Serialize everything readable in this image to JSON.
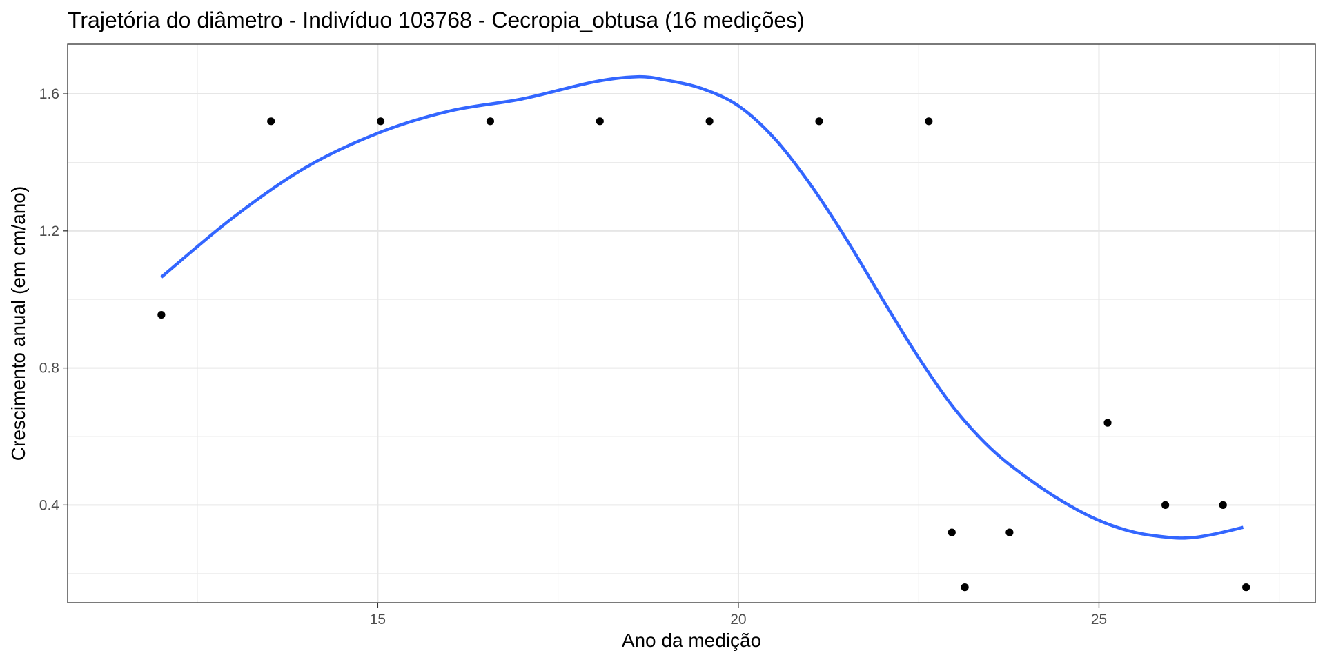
{
  "chart_data": {
    "type": "scatter",
    "title": "Trajetória do diâmetro - Indivíduo 103768 - Cecropia_obtusa (16 medições)",
    "xlabel": "Ano da medição",
    "ylabel": "Crescimento anual (em cm/ano)",
    "xlim": [
      10.7,
      28.0
    ],
    "ylim": [
      0.115,
      1.745
    ],
    "x_ticks": [
      15,
      20,
      25
    ],
    "x_tick_labels": [
      "15",
      "20",
      "25"
    ],
    "x_minor_ticks": [
      12.5,
      17.5,
      22.5,
      27.5
    ],
    "y_ticks": [
      0.4,
      0.8,
      1.2,
      1.6
    ],
    "y_tick_labels": [
      "0.4",
      "0.8",
      "1.2",
      "1.6"
    ],
    "y_minor_ticks": [
      0.2,
      0.6,
      1.0,
      1.4
    ],
    "grid": true,
    "series": [
      {
        "kind": "points",
        "color": "#000000",
        "x": [
          12.0,
          13.52,
          15.04,
          16.56,
          18.08,
          19.6,
          21.12,
          22.64,
          22.96,
          23.14,
          23.76,
          25.12,
          25.92,
          26.72,
          27.04
        ],
        "y": [
          0.955,
          1.52,
          1.52,
          1.52,
          1.52,
          1.52,
          1.52,
          1.52,
          0.32,
          0.16,
          0.32,
          0.64,
          0.4,
          0.4,
          0.16
        ]
      },
      {
        "kind": "smooth",
        "color": "#3366FF",
        "x": [
          12.0,
          13.0,
          14.0,
          15.0,
          16.0,
          17.0,
          18.0,
          18.6,
          19.0,
          19.5,
          20.0,
          20.5,
          21.0,
          21.5,
          22.0,
          22.5,
          23.0,
          23.5,
          24.0,
          24.5,
          25.0,
          25.5,
          26.0,
          26.3,
          26.6,
          27.0
        ],
        "y": [
          1.065,
          1.24,
          1.385,
          1.485,
          1.55,
          1.585,
          1.635,
          1.65,
          1.64,
          1.615,
          1.565,
          1.47,
          1.335,
          1.175,
          1.0,
          0.83,
          0.68,
          0.565,
          0.48,
          0.41,
          0.355,
          0.32,
          0.305,
          0.305,
          0.315,
          0.335
        ]
      }
    ]
  }
}
